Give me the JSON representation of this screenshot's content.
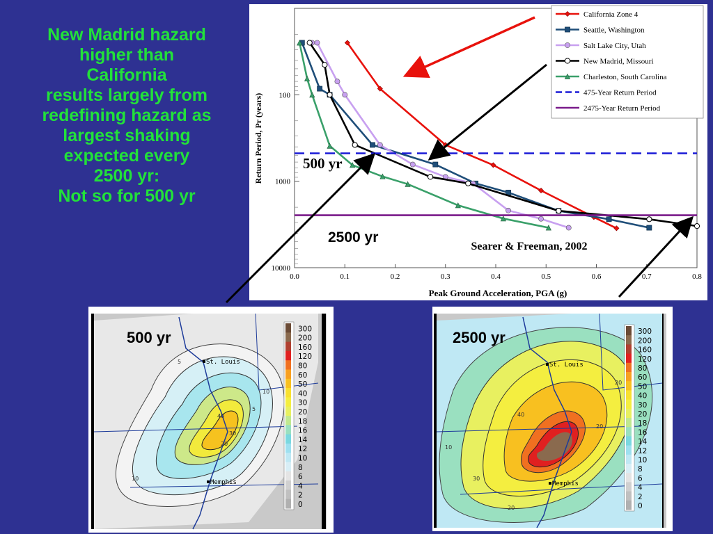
{
  "headline": {
    "lines": [
      "New Madrid hazard",
      "higher than",
      "California",
      "results largely from",
      "redefining hazard as",
      "largest shaking",
      "expected every",
      "2500 yr:",
      "Not so for 500 yr"
    ],
    "color": "#22e13a"
  },
  "background_color": "#2e3192",
  "chart_data": {
    "type": "line",
    "xlabel": "Peak Ground Acceleration, PGA (g)",
    "ylabel": "Return Period, Pr (years)",
    "xlim": [
      0.0,
      0.8
    ],
    "ylim": [
      10,
      10000
    ],
    "y_scale": "log",
    "y_inverted": true,
    "x_ticks": [
      "0.0",
      "0.1",
      "0.2",
      "0.3",
      "0.4",
      "0.5",
      "0.6",
      "0.7",
      "0.8"
    ],
    "y_ticks": [
      "100",
      "1000",
      "10000"
    ],
    "citation": "Searer & Freeman, 2002",
    "annotations": [
      "500 yr",
      "2500 yr"
    ],
    "legend_position": "top-right",
    "series": [
      {
        "name": "California Zone 4",
        "color": "#e8120c",
        "marker": "diamond",
        "x": [
          0.105,
          0.17,
          0.3,
          0.395,
          0.49,
          0.595,
          0.64
        ],
        "y": [
          25,
          85,
          380,
          650,
          1280,
          2600,
          3500
        ]
      },
      {
        "name": "Seattle, Washington",
        "color": "#1f4e79",
        "marker": "square",
        "x": [
          0.015,
          0.05,
          0.07,
          0.155,
          0.28,
          0.36,
          0.425,
          0.525,
          0.625,
          0.705
        ],
        "y": [
          25,
          85,
          100,
          380,
          640,
          1060,
          1350,
          2200,
          2750,
          3450
        ]
      },
      {
        "name": "Salt Lake City, Utah",
        "color": "#c8a0f0",
        "marker": "circle",
        "x": [
          0.035,
          0.045,
          0.085,
          0.1,
          0.17,
          0.235,
          0.3,
          0.355,
          0.425,
          0.49,
          0.545
        ],
        "y": [
          25,
          25,
          70,
          100,
          380,
          640,
          890,
          1060,
          2180,
          2720,
          3450
        ]
      },
      {
        "name": "New Madrid, Missouri",
        "color": "#000000",
        "marker": "circle-open",
        "x": [
          0.03,
          0.06,
          0.07,
          0.12,
          0.27,
          0.345,
          0.525,
          0.705,
          0.8
        ],
        "y": [
          25,
          45,
          100,
          380,
          890,
          1060,
          2200,
          2750,
          3300
        ]
      },
      {
        "name": "Charleston, South Carolina",
        "color": "#3aa06a",
        "marker": "triangle",
        "x": [
          0.01,
          0.025,
          0.035,
          0.07,
          0.115,
          0.175,
          0.225,
          0.325,
          0.415,
          0.505
        ],
        "y": [
          25,
          65,
          100,
          390,
          650,
          880,
          1080,
          1900,
          2700,
          3450
        ]
      },
      {
        "name": "475-Year Return Period",
        "color": "#1a1ad6",
        "dashed": true,
        "x": [
          0.0,
          0.8
        ],
        "y": [
          475,
          475
        ]
      },
      {
        "name": "2475-Year Return Period",
        "color": "#7a1a8a",
        "x": [
          0.0,
          0.8
        ],
        "y": [
          2475,
          2475
        ]
      }
    ]
  },
  "maps": [
    {
      "label": "500 yr",
      "cities": [
        "St. Louis",
        "Memphis"
      ],
      "contour_labels": [
        "5",
        "10",
        "20",
        "40",
        "30",
        "5",
        "10"
      ],
      "colorbar": [
        "300",
        "200",
        "160",
        "120",
        "80",
        "60",
        "50",
        "40",
        "30",
        "20",
        "18",
        "16",
        "14",
        "12",
        "10",
        "8",
        "6",
        "4",
        "2",
        "0"
      ],
      "colorbar_colors": [
        "#6b4b36",
        "#8a6a4e",
        "#b04030",
        "#e02020",
        "#f07020",
        "#f8a020",
        "#f8c020",
        "#f8e030",
        "#f4ee40",
        "#e8f060",
        "#c0e890",
        "#9ae0c0",
        "#7ad8e0",
        "#9ee0f0",
        "#bfe8f4",
        "#d8eef6",
        "#e4e4e4",
        "#d0d0d0",
        "#c0c0c0",
        "#b0b0b0"
      ]
    },
    {
      "label": "2500 yr",
      "cities": [
        "St. Louis",
        "Memphis"
      ],
      "contour_labels": [
        "40",
        "20",
        "30",
        "20",
        "20",
        "10"
      ],
      "colorbar": [
        "300",
        "200",
        "160",
        "120",
        "80",
        "60",
        "50",
        "40",
        "30",
        "20",
        "18",
        "16",
        "14",
        "12",
        "10",
        "8",
        "6",
        "4",
        "2",
        "0"
      ]
    }
  ],
  "chart_labels": {
    "yr500": "500 yr",
    "yr2500": "2500 yr"
  }
}
